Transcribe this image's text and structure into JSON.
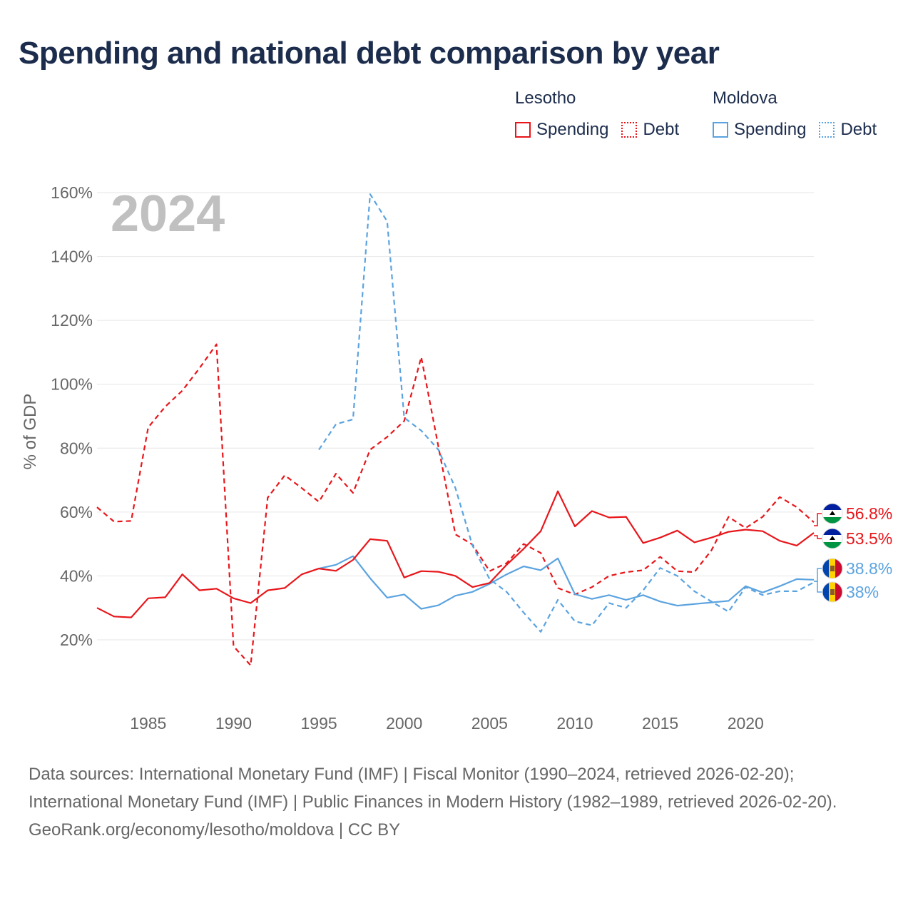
{
  "title": "Spending and national debt comparison by year",
  "legend": {
    "groups": [
      {
        "name": "Lesotho",
        "color": "#e8161b",
        "items": [
          {
            "label": "Spending",
            "style": "solid"
          },
          {
            "label": "Debt",
            "style": "dotted"
          }
        ]
      },
      {
        "name": "Moldova",
        "color": "#5ba3e0",
        "items": [
          {
            "label": "Spending",
            "style": "solid"
          },
          {
            "label": "Debt",
            "style": "dotted"
          }
        ]
      }
    ]
  },
  "chart_data": {
    "type": "line",
    "title": "Spending and national debt comparison by year",
    "year_label": "2024",
    "ylabel": "% of GDP",
    "xlabel": "",
    "xlim": [
      1982,
      2024
    ],
    "ylim": [
      0,
      165
    ],
    "x_ticks": [
      1985,
      1990,
      1995,
      2000,
      2005,
      2010,
      2015,
      2020
    ],
    "y_ticks": [
      20,
      40,
      60,
      80,
      100,
      120,
      140,
      160
    ],
    "y_tick_labels": [
      "20%",
      "40%",
      "60%",
      "80%",
      "100%",
      "120%",
      "140%",
      "160%"
    ],
    "grid": true,
    "series": [
      {
        "name": "Lesotho Spending",
        "country": "Lesotho",
        "metric": "Spending",
        "color": "#e8161b",
        "dash": "solid",
        "x": [
          1982,
          1983,
          1984,
          1985,
          1986,
          1987,
          1988,
          1989,
          1990,
          1991,
          1992,
          1993,
          1994,
          1995,
          1996,
          1997,
          1998,
          1999,
          2000,
          2001,
          2002,
          2003,
          2004,
          2005,
          2006,
          2007,
          2008,
          2009,
          2010,
          2011,
          2012,
          2013,
          2014,
          2015,
          2016,
          2017,
          2018,
          2019,
          2020,
          2021,
          2022,
          2023,
          2024
        ],
        "values": [
          30,
          27.3,
          27,
          33,
          33.3,
          40.5,
          35.5,
          36,
          33,
          31.5,
          35.5,
          36.2,
          40.5,
          42.3,
          41.6,
          45,
          51.5,
          51,
          39.5,
          41.5,
          41.3,
          40,
          36.5,
          37.8,
          43.5,
          48.5,
          54,
          66.5,
          55.5,
          60.3,
          58.3,
          58.5,
          50.3,
          52,
          54.2,
          50.5,
          52,
          53.8,
          54.5,
          54,
          51,
          49.5,
          53.5
        ],
        "end_label": "53.5%"
      },
      {
        "name": "Lesotho Debt",
        "country": "Lesotho",
        "metric": "Debt",
        "color": "#e8161b",
        "dash": "dashed",
        "x": [
          1982,
          1983,
          1984,
          1985,
          1986,
          1987,
          1988,
          1989,
          1990,
          1991,
          1992,
          1993,
          1994,
          1995,
          1996,
          1997,
          1998,
          1999,
          2000,
          2001,
          2002,
          2003,
          2004,
          2005,
          2006,
          2007,
          2008,
          2009,
          2010,
          2011,
          2012,
          2013,
          2014,
          2015,
          2016,
          2017,
          2018,
          2019,
          2020,
          2021,
          2022,
          2023,
          2024
        ],
        "values": [
          61.5,
          57,
          57.2,
          86.5,
          93,
          98,
          105,
          112.5,
          18,
          12,
          64.5,
          71.5,
          67.5,
          63.2,
          72,
          66,
          79.5,
          83.5,
          88.5,
          108.5,
          80.5,
          53,
          49.8,
          41.5,
          44,
          50,
          47.2,
          36.2,
          34.2,
          36.5,
          40,
          41.2,
          41.8,
          46,
          41.5,
          41.2,
          48,
          58.5,
          55,
          58.5,
          64.7,
          61.5,
          56.8
        ],
        "end_label": "56.8%"
      },
      {
        "name": "Moldova Spending",
        "country": "Moldova",
        "metric": "Spending",
        "color": "#5ba3e0",
        "dash": "solid",
        "x": [
          1995,
          1996,
          1997,
          1998,
          1999,
          2000,
          2001,
          2002,
          2003,
          2004,
          2005,
          2006,
          2007,
          2008,
          2009,
          2010,
          2011,
          2012,
          2013,
          2014,
          2015,
          2016,
          2017,
          2018,
          2019,
          2020,
          2021,
          2022,
          2023,
          2024
        ],
        "values": [
          42.3,
          43.5,
          46.2,
          39.3,
          33.2,
          34.2,
          29.7,
          30.8,
          33.8,
          35,
          37.5,
          40.5,
          43,
          41.8,
          45.5,
          34.3,
          32.8,
          34,
          32.5,
          34,
          32,
          30.7,
          31.2,
          31.7,
          32.2,
          36.8,
          34.8,
          36.8,
          39,
          38.8
        ],
        "end_label": "38.8%"
      },
      {
        "name": "Moldova Debt",
        "country": "Moldova",
        "metric": "Debt",
        "color": "#5ba3e0",
        "dash": "dashed",
        "x": [
          1995,
          1996,
          1997,
          1998,
          1999,
          2000,
          2001,
          2002,
          2003,
          2004,
          2005,
          2006,
          2007,
          2008,
          2009,
          2010,
          2011,
          2012,
          2013,
          2014,
          2015,
          2016,
          2017,
          2018,
          2019,
          2020,
          2021,
          2022,
          2023,
          2024
        ],
        "values": [
          79.5,
          87.5,
          89,
          159.5,
          151,
          89.5,
          85.5,
          79.5,
          67.5,
          49.5,
          39,
          35,
          28.5,
          22.5,
          32.5,
          25.8,
          24.5,
          31.5,
          30,
          35.5,
          42.5,
          40,
          35.2,
          32,
          28.8,
          36.5,
          34,
          35.2,
          35.2,
          38
        ],
        "end_label": "38%"
      }
    ]
  },
  "footer": {
    "sources": "Data sources: International Monetary Fund (IMF) | Fiscal Monitor (1990–2024, retrieved 2026-02-20); International Monetary Fund (IMF) | Public Finances in Modern History (1982–1989, retrieved 2026-02-20).",
    "credit": "GeoRank.org/economy/lesotho/moldova | CC BY"
  }
}
